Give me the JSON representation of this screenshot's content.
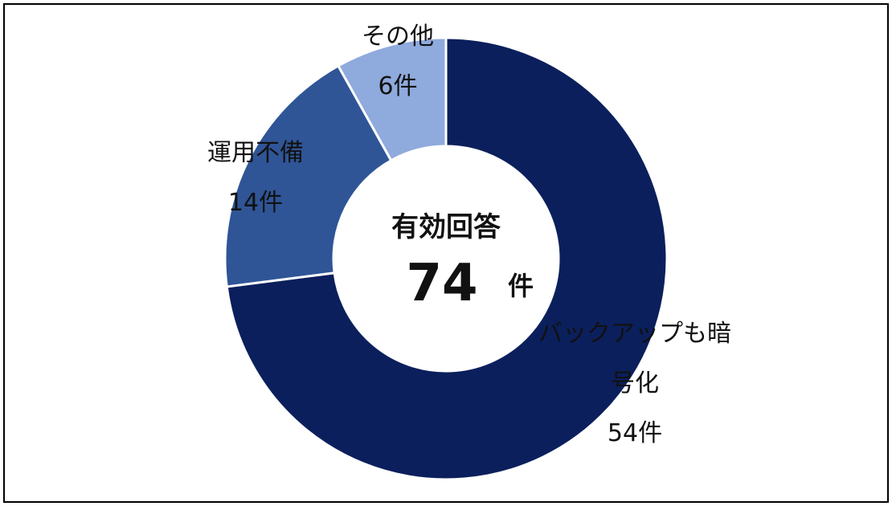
{
  "chart_data": {
    "type": "donut",
    "categories": [
      "バックアップも暗号化",
      "運用不備",
      "その他"
    ],
    "values": [
      54,
      14,
      6
    ],
    "value_labels": [
      "54件",
      "14件",
      "6件"
    ],
    "colors": [
      "#0b1f5c",
      "#2f5597",
      "#8faadc"
    ],
    "center_label": "有効回答",
    "center_total": 74,
    "center_unit": "件"
  }
}
